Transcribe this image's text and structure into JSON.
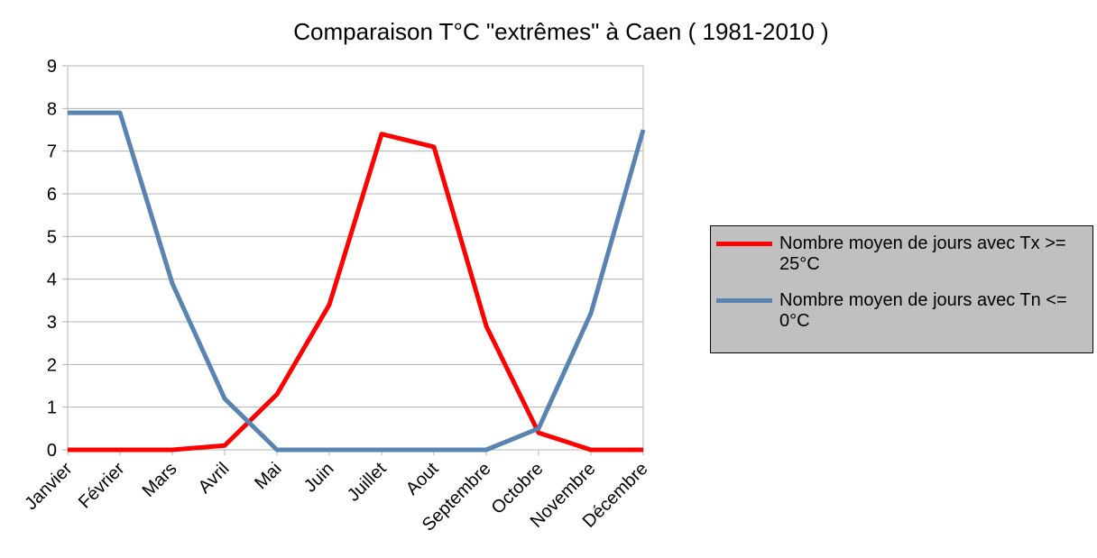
{
  "chart_data": {
    "type": "line",
    "title": "Comparaison T°C \"extrêmes\" à Caen ( 1981-2010 )",
    "categories": [
      "Janvier",
      "Février",
      "Mars",
      "Avril",
      "Mai",
      "Juin",
      "Juillet",
      "Aout",
      "Septembre",
      "Octobre",
      "Novembre",
      "Décembre"
    ],
    "series": [
      {
        "name": "Nombre moyen de jours avec Tx >= 25°C",
        "color": "#ff0000",
        "values": [
          0,
          0,
          0,
          0.1,
          1.3,
          3.4,
          7.4,
          7.1,
          2.9,
          0.4,
          0,
          0
        ]
      },
      {
        "name": "Nombre moyen de jours avec Tn <= 0°C",
        "color": "#5983b0",
        "values": [
          7.9,
          7.9,
          3.9,
          1.2,
          0,
          0,
          0,
          0,
          0,
          0.5,
          3.2,
          7.5
        ]
      }
    ],
    "ylim": [
      0,
      9
    ],
    "yticks": [
      0,
      1,
      2,
      3,
      4,
      5,
      6,
      7,
      8,
      9
    ],
    "grid": true,
    "legend": "right"
  }
}
